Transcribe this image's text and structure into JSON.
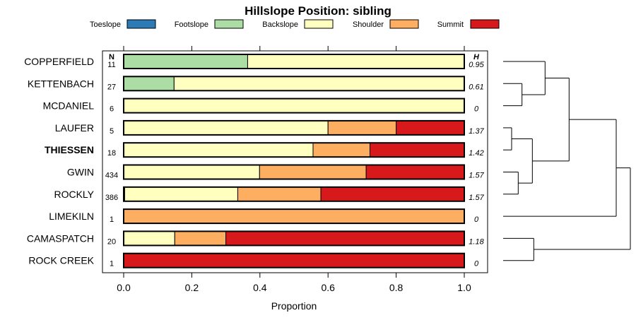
{
  "chart_data": {
    "type": "bar",
    "title": "Hillslope Position: sibling",
    "xlabel": "Proportion",
    "ylabel": "",
    "xlim": [
      0,
      1
    ],
    "xticks": [
      "0.0",
      "0.2",
      "0.4",
      "0.6",
      "0.8",
      "1.0"
    ],
    "legend": {
      "position": "top",
      "entries": [
        {
          "name": "Toeslope",
          "color": "#2c7bb6"
        },
        {
          "name": "Footslope",
          "color": "#abdda4"
        },
        {
          "name": "Backslope",
          "color": "#ffffbf"
        },
        {
          "name": "Shoulder",
          "color": "#fdae61"
        },
        {
          "name": "Summit",
          "color": "#d7191c"
        }
      ]
    },
    "column_headers": {
      "n": "N",
      "h": "H"
    },
    "rows": [
      {
        "name": "COPPERFIELD",
        "bold": false,
        "n": "11",
        "h": "0.95",
        "values": [
          0,
          0.364,
          0.636,
          0,
          0
        ]
      },
      {
        "name": "KETTENBACH",
        "bold": false,
        "n": "27",
        "h": "0.61",
        "values": [
          0,
          0.148,
          0.852,
          0,
          0
        ]
      },
      {
        "name": "MCDANIEL",
        "bold": false,
        "n": "6",
        "h": "0",
        "values": [
          0,
          0,
          1,
          0,
          0
        ]
      },
      {
        "name": "LAUFER",
        "bold": false,
        "n": "5",
        "h": "1.37",
        "values": [
          0,
          0,
          0.6,
          0.2,
          0.2
        ]
      },
      {
        "name": "THIESSEN",
        "bold": true,
        "n": "18",
        "h": "1.42",
        "values": [
          0,
          0,
          0.556,
          0.167,
          0.277
        ]
      },
      {
        "name": "GWIN",
        "bold": false,
        "n": "434",
        "h": "1.57",
        "values": [
          0,
          0,
          0.399,
          0.313,
          0.288
        ]
      },
      {
        "name": "ROCKLY",
        "bold": false,
        "n": "386",
        "h": "1.57",
        "values": [
          0.003,
          0,
          0.332,
          0.244,
          0.421
        ]
      },
      {
        "name": "LIMEKILN",
        "bold": false,
        "n": "1",
        "h": "0",
        "values": [
          0,
          0,
          0,
          1,
          0
        ]
      },
      {
        "name": "CAMASPATCH",
        "bold": false,
        "n": "20",
        "h": "1.18",
        "values": [
          0,
          0,
          0.15,
          0.15,
          0.7
        ]
      },
      {
        "name": "ROCK CREEK",
        "bold": false,
        "n": "1",
        "h": "0",
        "values": [
          0,
          0,
          0,
          0,
          1
        ]
      }
    ],
    "dendrogram": {
      "merges": [
        {
          "a": 3,
          "b": 4,
          "height": 0.18
        },
        {
          "a": 5,
          "b": 6,
          "height": 0.32
        },
        {
          "a": 1,
          "b": 2,
          "height": 0.4
        },
        {
          "a": "m0",
          "b": "m1",
          "height": 0.62
        },
        {
          "a": 8,
          "b": 9,
          "height": 0.65
        },
        {
          "a": 0,
          "b": "m2",
          "height": 0.89
        },
        {
          "a": "m3",
          "b": "m5",
          "height": 1.4
        },
        {
          "a": "m6",
          "b": 7,
          "height": 2.4
        },
        {
          "a": "m7",
          "b": "m4",
          "height": 2.7
        }
      ],
      "max_height": 2.7
    }
  }
}
